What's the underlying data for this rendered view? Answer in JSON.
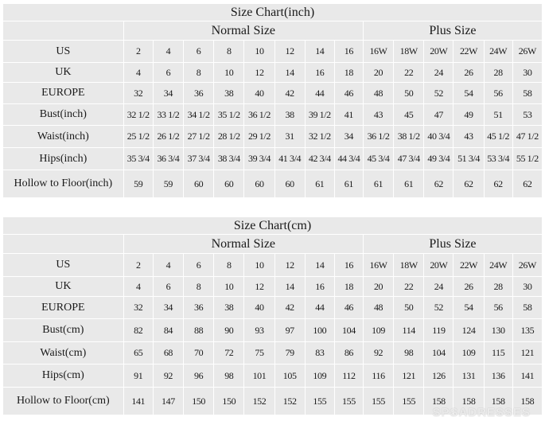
{
  "charts": [
    {
      "title": "Size Chart(inch)",
      "normal_label": "Normal Size",
      "plus_label": "Plus Size",
      "row_heights": [
        28,
        25,
        27,
        27,
        28,
        28,
        35
      ],
      "rows": [
        {
          "label": "US",
          "values": [
            "2",
            "4",
            "6",
            "8",
            "10",
            "12",
            "14",
            "16",
            "16W",
            "18W",
            "20W",
            "22W",
            "24W",
            "26W"
          ]
        },
        {
          "label": "UK",
          "values": [
            "4",
            "6",
            "8",
            "10",
            "12",
            "14",
            "16",
            "18",
            "20",
            "22",
            "24",
            "26",
            "28",
            "30"
          ]
        },
        {
          "label": "EUROPE",
          "values": [
            "32",
            "34",
            "36",
            "38",
            "40",
            "42",
            "44",
            "46",
            "48",
            "50",
            "52",
            "54",
            "56",
            "58"
          ]
        },
        {
          "label": "Bust(inch)",
          "values": [
            "32 1/2",
            "33 1/2",
            "34 1/2",
            "35 1/2",
            "36 1/2",
            "38",
            "39 1/2",
            "41",
            "43",
            "45",
            "47",
            "49",
            "51",
            "53"
          ]
        },
        {
          "label": "Waist(inch)",
          "values": [
            "25 1/2",
            "26 1/2",
            "27 1/2",
            "28 1/2",
            "29 1/2",
            "31",
            "32 1/2",
            "34",
            "36 1/2",
            "38 1/2",
            "40 3/4",
            "43",
            "45 1/2",
            "47 1/2"
          ]
        },
        {
          "label": "Hips(inch)",
          "values": [
            "35 3/4",
            "36 3/4",
            "37 3/4",
            "38 3/4",
            "39 3/4",
            "41 3/4",
            "42 3/4",
            "44 3/4",
            "45 3/4",
            "47 3/4",
            "49 3/4",
            "51 3/4",
            "53 3/4",
            "55 1/2"
          ]
        },
        {
          "label": "Hollow to Floor(inch)",
          "values": [
            "59",
            "59",
            "60",
            "60",
            "60",
            "60",
            "61",
            "61",
            "61",
            "61",
            "62",
            "62",
            "62",
            "62"
          ]
        }
      ]
    },
    {
      "title": "Size Chart(cm)",
      "normal_label": "Normal Size",
      "plus_label": "Plus Size",
      "row_heights": [
        29,
        25,
        28,
        29,
        28,
        29,
        35
      ],
      "rows": [
        {
          "label": "US",
          "values": [
            "2",
            "4",
            "6",
            "8",
            "10",
            "12",
            "14",
            "16",
            "16W",
            "18W",
            "20W",
            "22W",
            "24W",
            "26W"
          ]
        },
        {
          "label": "UK",
          "values": [
            "4",
            "6",
            "8",
            "10",
            "12",
            "14",
            "16",
            "18",
            "20",
            "22",
            "24",
            "26",
            "28",
            "30"
          ]
        },
        {
          "label": "EUROPE",
          "values": [
            "32",
            "34",
            "36",
            "38",
            "40",
            "42",
            "44",
            "46",
            "48",
            "50",
            "52",
            "54",
            "56",
            "58"
          ]
        },
        {
          "label": "Bust(cm)",
          "values": [
            "82",
            "84",
            "88",
            "90",
            "93",
            "97",
            "100",
            "104",
            "109",
            "114",
            "119",
            "124",
            "130",
            "135"
          ]
        },
        {
          "label": "Waist(cm)",
          "values": [
            "65",
            "68",
            "70",
            "72",
            "75",
            "79",
            "83",
            "86",
            "92",
            "98",
            "104",
            "109",
            "115",
            "121"
          ]
        },
        {
          "label": "Hips(cm)",
          "values": [
            "91",
            "92",
            "96",
            "98",
            "101",
            "105",
            "109",
            "112",
            "116",
            "121",
            "126",
            "131",
            "136",
            "141"
          ]
        },
        {
          "label": "Hollow to Floor(cm)",
          "values": [
            "141",
            "147",
            "150",
            "150",
            "152",
            "152",
            "155",
            "155",
            "155",
            "155",
            "158",
            "158",
            "158",
            "158"
          ]
        }
      ]
    }
  ],
  "watermark": "SPSADRESSES",
  "colors": {
    "cell_bg": "#e9e9e9",
    "grid": "#ffffff",
    "text": "#1a1a1a"
  }
}
